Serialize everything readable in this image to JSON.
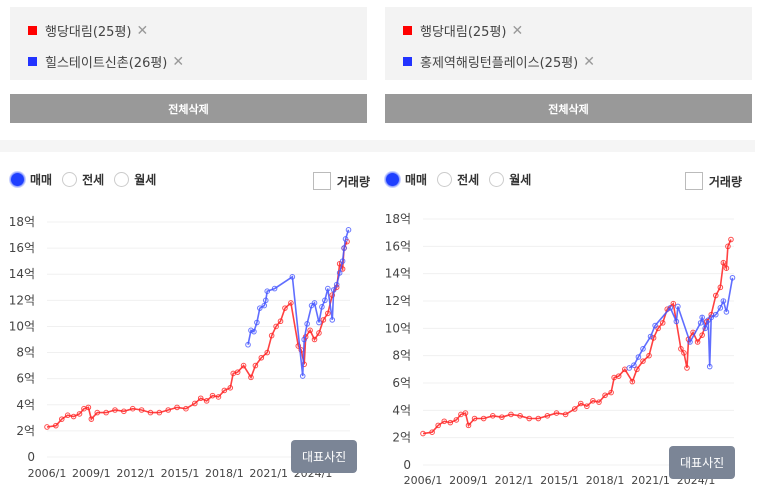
{
  "panels": [
    {
      "legend": [
        {
          "name": "행당대림(25평)",
          "color": "#ff0000"
        },
        {
          "name": "힐스테이트신촌(26평)",
          "color": "#2233ff"
        }
      ],
      "clear_label": "전체삭제",
      "radio_options": [
        "매매",
        "전세",
        "월세"
      ],
      "selected_radio": "매매",
      "volume_label": "거래량",
      "volume_checked": false,
      "photo_label": "대표사진"
    },
    {
      "legend": [
        {
          "name": "행당대림(25평)",
          "color": "#ff0000"
        },
        {
          "name": "홍제역해링턴플레이스(25평)",
          "color": "#2233ff"
        }
      ],
      "clear_label": "전체삭제",
      "radio_options": [
        "매매",
        "전세",
        "월세"
      ],
      "selected_radio": "매매",
      "volume_label": "거래량",
      "volume_checked": false,
      "photo_label": "대표사진"
    }
  ],
  "chart_data": [
    {
      "type": "line",
      "xlim": [
        2006,
        2026.5
      ],
      "ylim": [
        0,
        18
      ],
      "yticks": [
        0,
        2,
        4,
        6,
        8,
        10,
        12,
        14,
        16,
        18
      ],
      "ytick_labels": [
        "0",
        "2억",
        "4억",
        "6억",
        "8억",
        "10억",
        "12억",
        "14억",
        "16억",
        "18억"
      ],
      "xticks": [
        2006,
        2009,
        2012,
        2015,
        2018,
        2021,
        2024
      ],
      "xtick_labels": [
        "2006/1",
        "2009/1",
        "2012/1",
        "2015/1",
        "2018/1",
        "2021/1",
        "2024/1"
      ],
      "grid": true,
      "series": [
        {
          "name": "행당대림(25평)",
          "color": "#ff2020",
          "points": [
            [
              2006.0,
              2.3
            ],
            [
              2006.6,
              2.4
            ],
            [
              2007.0,
              2.9
            ],
            [
              2007.4,
              3.2
            ],
            [
              2007.8,
              3.1
            ],
            [
              2008.2,
              3.3
            ],
            [
              2008.5,
              3.7
            ],
            [
              2008.8,
              3.8
            ],
            [
              2009.0,
              2.9
            ],
            [
              2009.4,
              3.4
            ],
            [
              2010.0,
              3.4
            ],
            [
              2010.6,
              3.6
            ],
            [
              2011.2,
              3.5
            ],
            [
              2011.8,
              3.7
            ],
            [
              2012.4,
              3.6
            ],
            [
              2013.0,
              3.4
            ],
            [
              2013.6,
              3.4
            ],
            [
              2014.2,
              3.6
            ],
            [
              2014.8,
              3.8
            ],
            [
              2015.4,
              3.7
            ],
            [
              2016.0,
              4.1
            ],
            [
              2016.4,
              4.5
            ],
            [
              2016.8,
              4.3
            ],
            [
              2017.2,
              4.7
            ],
            [
              2017.6,
              4.6
            ],
            [
              2018.0,
              5.1
            ],
            [
              2018.4,
              5.3
            ],
            [
              2018.6,
              6.4
            ],
            [
              2018.9,
              6.5
            ],
            [
              2019.3,
              7.0
            ],
            [
              2019.8,
              6.1
            ],
            [
              2020.1,
              7.0
            ],
            [
              2020.5,
              7.6
            ],
            [
              2020.9,
              8.0
            ],
            [
              2021.2,
              9.3
            ],
            [
              2021.5,
              10.0
            ],
            [
              2021.8,
              10.4
            ],
            [
              2022.1,
              11.4
            ],
            [
              2022.5,
              11.8
            ],
            [
              2023.0,
              8.5
            ],
            [
              2023.2,
              8.2
            ],
            [
              2023.4,
              7.1
            ],
            [
              2023.5,
              9.2
            ],
            [
              2023.8,
              9.7
            ],
            [
              2024.1,
              9.0
            ],
            [
              2024.4,
              9.5
            ],
            [
              2024.7,
              10.5
            ],
            [
              2025.0,
              11.0
            ],
            [
              2025.3,
              12.4
            ],
            [
              2025.6,
              13.0
            ],
            [
              2025.8,
              14.8
            ],
            [
              2026.0,
              14.4
            ],
            [
              2026.1,
              16.0
            ],
            [
              2026.3,
              16.5
            ]
          ]
        },
        {
          "name": "힐스테이트신촌(26평)",
          "color": "#4455ff",
          "points": [
            [
              2019.6,
              8.6
            ],
            [
              2019.8,
              9.7
            ],
            [
              2020.0,
              9.6
            ],
            [
              2020.2,
              10.3
            ],
            [
              2020.4,
              11.4
            ],
            [
              2020.7,
              11.6
            ],
            [
              2020.8,
              12.0
            ],
            [
              2020.9,
              12.7
            ],
            [
              2021.4,
              12.9
            ],
            [
              2022.6,
              13.8
            ],
            [
              2023.3,
              6.2
            ],
            [
              2023.4,
              9.0
            ],
            [
              2023.6,
              10.2
            ],
            [
              2023.9,
              11.6
            ],
            [
              2024.1,
              11.8
            ],
            [
              2024.4,
              10.3
            ],
            [
              2024.6,
              11.5
            ],
            [
              2024.8,
              12.0
            ],
            [
              2025.0,
              12.9
            ],
            [
              2025.3,
              10.5
            ],
            [
              2025.4,
              12.8
            ],
            [
              2025.6,
              13.2
            ],
            [
              2025.8,
              14.1
            ],
            [
              2026.0,
              15.0
            ],
            [
              2026.1,
              16.0
            ],
            [
              2026.2,
              16.7
            ],
            [
              2026.4,
              17.4
            ]
          ]
        }
      ]
    },
    {
      "type": "line",
      "xlim": [
        2006,
        2026.5
      ],
      "ylim": [
        0,
        18
      ],
      "yticks": [
        0,
        2,
        4,
        6,
        8,
        10,
        12,
        14,
        16,
        18
      ],
      "ytick_labels": [
        "0",
        "2억",
        "4억",
        "6억",
        "8억",
        "10억",
        "12억",
        "14억",
        "16억",
        "18억"
      ],
      "xticks": [
        2006,
        2009,
        2012,
        2015,
        2018,
        2021,
        2024
      ],
      "xtick_labels": [
        "2006/1",
        "2009/1",
        "2012/1",
        "2015/1",
        "2018/1",
        "2021/1",
        "2024/1"
      ],
      "grid": true,
      "series": [
        {
          "name": "행당대림(25평)",
          "color": "#ff2020",
          "points": [
            [
              2006.0,
              2.3
            ],
            [
              2006.6,
              2.4
            ],
            [
              2007.0,
              2.9
            ],
            [
              2007.4,
              3.2
            ],
            [
              2007.8,
              3.1
            ],
            [
              2008.2,
              3.3
            ],
            [
              2008.5,
              3.7
            ],
            [
              2008.8,
              3.8
            ],
            [
              2009.0,
              2.9
            ],
            [
              2009.4,
              3.4
            ],
            [
              2010.0,
              3.4
            ],
            [
              2010.6,
              3.6
            ],
            [
              2011.2,
              3.5
            ],
            [
              2011.8,
              3.7
            ],
            [
              2012.4,
              3.6
            ],
            [
              2013.0,
              3.4
            ],
            [
              2013.6,
              3.4
            ],
            [
              2014.2,
              3.6
            ],
            [
              2014.8,
              3.8
            ],
            [
              2015.4,
              3.7
            ],
            [
              2016.0,
              4.1
            ],
            [
              2016.4,
              4.5
            ],
            [
              2016.8,
              4.3
            ],
            [
              2017.2,
              4.7
            ],
            [
              2017.6,
              4.6
            ],
            [
              2018.0,
              5.1
            ],
            [
              2018.4,
              5.3
            ],
            [
              2018.6,
              6.4
            ],
            [
              2018.9,
              6.5
            ],
            [
              2019.3,
              7.0
            ],
            [
              2019.8,
              6.1
            ],
            [
              2020.1,
              7.0
            ],
            [
              2020.5,
              7.6
            ],
            [
              2020.9,
              8.0
            ],
            [
              2021.2,
              9.3
            ],
            [
              2021.5,
              10.0
            ],
            [
              2021.8,
              10.4
            ],
            [
              2022.1,
              11.4
            ],
            [
              2022.5,
              11.8
            ],
            [
              2023.0,
              8.5
            ],
            [
              2023.2,
              8.2
            ],
            [
              2023.4,
              7.1
            ],
            [
              2023.5,
              9.2
            ],
            [
              2023.8,
              9.7
            ],
            [
              2024.1,
              9.0
            ],
            [
              2024.4,
              9.5
            ],
            [
              2024.7,
              10.5
            ],
            [
              2025.0,
              11.0
            ],
            [
              2025.3,
              12.4
            ],
            [
              2025.6,
              13.0
            ],
            [
              2025.8,
              14.8
            ],
            [
              2026.0,
              14.4
            ],
            [
              2026.1,
              16.0
            ],
            [
              2026.3,
              16.5
            ]
          ]
        },
        {
          "name": "홍제역해링턴플레이스(25평)",
          "color": "#4455ff",
          "points": [
            [
              2019.6,
              7.1
            ],
            [
              2019.9,
              7.3
            ],
            [
              2020.2,
              7.9
            ],
            [
              2020.5,
              8.5
            ],
            [
              2021.0,
              9.4
            ],
            [
              2021.3,
              10.2
            ],
            [
              2022.3,
              11.5
            ],
            [
              2022.7,
              10.5
            ],
            [
              2022.8,
              11.6
            ],
            [
              2023.6,
              9.0
            ],
            [
              2024.3,
              10.4
            ],
            [
              2024.4,
              10.8
            ],
            [
              2024.6,
              10.0
            ],
            [
              2024.8,
              10.6
            ],
            [
              2024.9,
              7.2
            ],
            [
              2025.0,
              10.8
            ],
            [
              2025.3,
              11.0
            ],
            [
              2025.6,
              11.5
            ],
            [
              2025.8,
              12.0
            ],
            [
              2026.0,
              11.2
            ],
            [
              2026.4,
              13.7
            ]
          ]
        }
      ]
    }
  ]
}
